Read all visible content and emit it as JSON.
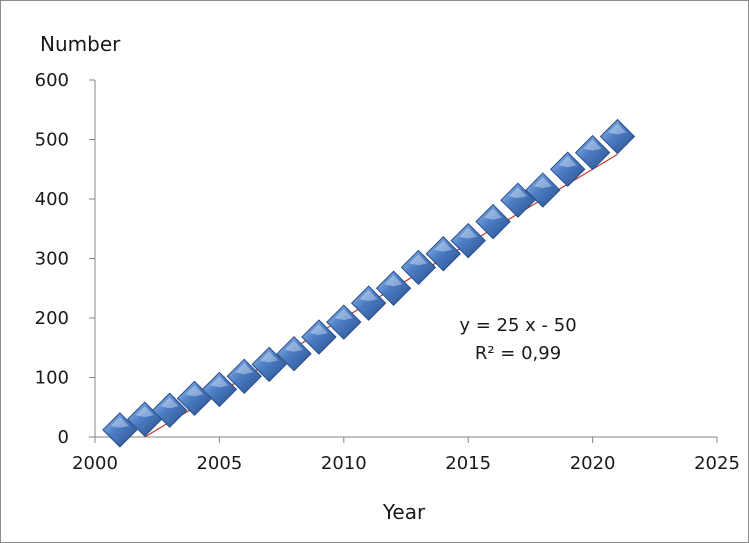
{
  "chart_data": {
    "type": "scatter",
    "title": "",
    "xlabel": "Year",
    "ylabel": "Number",
    "xlim": [
      2000,
      2025
    ],
    "ylim": [
      0,
      600
    ],
    "x_ticks": [
      "2000",
      "2005",
      "2010",
      "2015",
      "2020",
      "2025"
    ],
    "y_ticks": [
      "0",
      "100",
      "200",
      "300",
      "400",
      "500",
      "600"
    ],
    "grid": false,
    "legend": "none",
    "series": [
      {
        "x": [
          2001,
          2002,
          2003,
          2004,
          2005,
          2006,
          2007,
          2008,
          2009,
          2010,
          2011,
          2012,
          2013,
          2014,
          2015,
          2016,
          2017,
          2018,
          2019,
          2020,
          2021
        ],
        "y": [
          12,
          30,
          45,
          65,
          80,
          102,
          122,
          140,
          168,
          193,
          225,
          250,
          285,
          308,
          330,
          362,
          398,
          415,
          450,
          478,
          505
        ],
        "color": "#4a7cc4"
      }
    ],
    "trendline": {
      "equation": "y = 25 x - 50",
      "r_squared": "R² = 0,99",
      "slope": 25,
      "intercept": -50,
      "color": "#c0392b"
    }
  }
}
